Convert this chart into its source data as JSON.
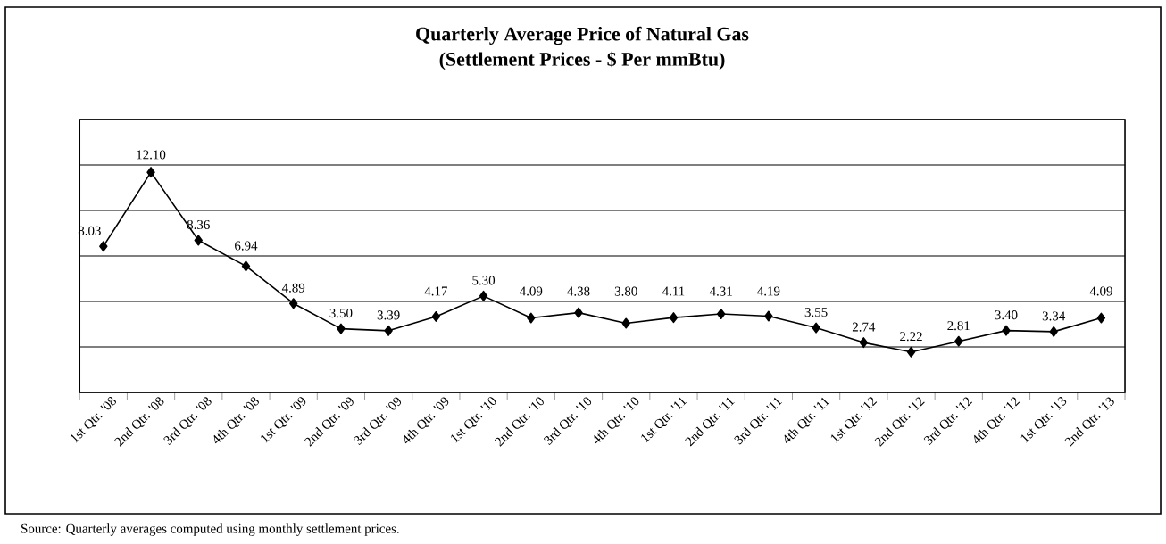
{
  "chart_data": {
    "type": "line",
    "title": "Quarterly  Average Price  of Natural  Gas",
    "subtitle": "(Settlement Prices - $ Per mmBtu)",
    "categories": [
      "1st Qtr. '08",
      "2nd Qtr. '08",
      "3rd Qtr. '08",
      "4th Qtr. '08",
      "1st Qtr. '09",
      "2nd Qtr. '09",
      "3rd Qtr. '09",
      "4th Qtr. '09",
      "1st Qtr. '10",
      "2nd Qtr. '10",
      "3rd Qtr. '10",
      "4th Qtr. '10",
      "1st Qtr. '11",
      "2nd Qtr. '11",
      "3rd Qtr. '11",
      "4th Qtr. '11",
      "1st Qtr. '12",
      "2nd Qtr. '12",
      "3rd Qtr. '12",
      "4th Qtr. '12",
      "1st Qtr. '13",
      "2nd Qtr. '13"
    ],
    "values": [
      8.03,
      12.1,
      8.36,
      6.94,
      4.89,
      3.5,
      3.39,
      4.17,
      5.3,
      4.09,
      4.38,
      3.8,
      4.11,
      4.31,
      4.19,
      3.55,
      2.74,
      2.22,
      2.81,
      3.4,
      3.34,
      4.09
    ],
    "value_labels": [
      "8.03",
      "12.10",
      "8.36",
      "6.94",
      "4.89",
      "3.50",
      "3.39",
      "4.17",
      "5.30",
      "4.09",
      "4.38",
      "3.80",
      "4.11",
      "4.31",
      "4.19",
      "3.55",
      "2.74",
      "2.22",
      "2.81",
      "3.40",
      "3.34",
      "4.09"
    ],
    "color": "#000000",
    "marker": "diamond",
    "line_style": "solid",
    "ylim": [
      0,
      15
    ],
    "yticks": [
      0,
      2.5,
      5,
      7.5,
      10,
      12.5,
      15
    ],
    "grid": "y",
    "tick_labels": "x",
    "annotations": [
      "Source:  Quarterly averages computed using monthly settlement prices."
    ]
  }
}
